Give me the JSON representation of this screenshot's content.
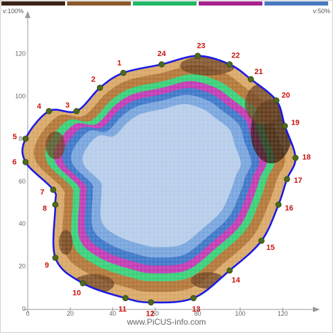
{
  "header": {
    "left_label": "v:100%",
    "right_label": "v:50%",
    "color_bar": [
      "#3b2314",
      "#8b5a2b",
      "#22b866",
      "#a8228e",
      "#4a7ac0"
    ]
  },
  "footer": {
    "text": "www.PiCUS-info.com"
  },
  "axes": {
    "x_ticks": [
      "0",
      "20",
      "40",
      "60",
      "80",
      "100",
      "120"
    ],
    "y_ticks": [
      "0",
      "20",
      "40",
      "60",
      "80",
      "100",
      "120"
    ]
  },
  "colors": {
    "outline": "#1a1ae6",
    "sensor": "#4d6b1e",
    "sensor_label": "#cc1111",
    "very_dark": "#2e1a0e",
    "dark": "#6b4220",
    "brown": "#b3783a",
    "tan": "#d9a868",
    "green": "#3ad07a",
    "magenta": "#c23cb4",
    "blue": "#3f78c8",
    "mid_blue": "#7aa6de",
    "light_blue": "#b7cdea"
  },
  "chart_data": {
    "type": "scatter",
    "title": "",
    "x_range": [
      0,
      130
    ],
    "y_range": [
      0,
      130
    ],
    "sensors": [
      {
        "label": "1",
        "x": 45,
        "y": 111
      },
      {
        "label": "2",
        "x": 34,
        "y": 104
      },
      {
        "label": "3",
        "x": 23,
        "y": 93
      },
      {
        "label": "4",
        "x": 10,
        "y": 93
      },
      {
        "label": "5",
        "x": -1,
        "y": 80
      },
      {
        "label": "6",
        "x": -1,
        "y": 69
      },
      {
        "label": "7",
        "x": 12,
        "y": 56
      },
      {
        "label": "8",
        "x": 13,
        "y": 49
      },
      {
        "label": "9",
        "x": 13,
        "y": 24
      },
      {
        "label": "10",
        "x": 26,
        "y": 12
      },
      {
        "label": "11",
        "x": 46,
        "y": 5
      },
      {
        "label": "12",
        "x": 58,
        "y": 3
      },
      {
        "label": "13",
        "x": 78,
        "y": 5
      },
      {
        "label": "14",
        "x": 95,
        "y": 18
      },
      {
        "label": "15",
        "x": 110,
        "y": 32
      },
      {
        "label": "16",
        "x": 118,
        "y": 49
      },
      {
        "label": "17",
        "x": 122,
        "y": 61
      },
      {
        "label": "18",
        "x": 126,
        "y": 71
      },
      {
        "label": "19",
        "x": 121,
        "y": 86
      },
      {
        "label": "20",
        "x": 117,
        "y": 98
      },
      {
        "label": "21",
        "x": 105,
        "y": 108
      },
      {
        "label": "22",
        "x": 95,
        "y": 115
      },
      {
        "label": "23",
        "x": 80,
        "y": 119
      },
      {
        "label": "24",
        "x": 63,
        "y": 115
      }
    ]
  }
}
